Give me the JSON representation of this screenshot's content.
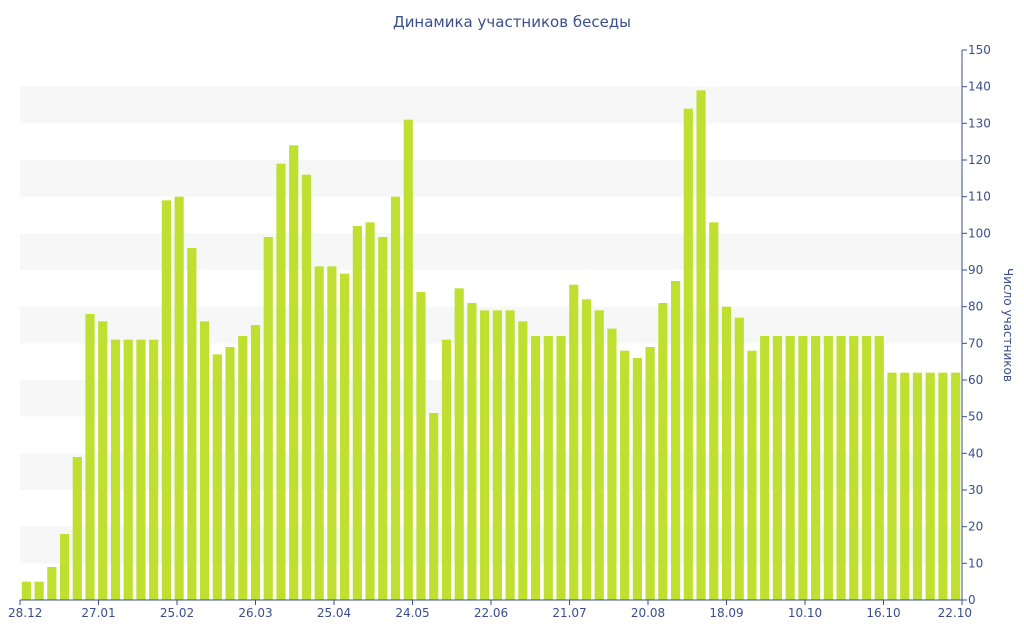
{
  "chart_data": {
    "type": "bar",
    "title": "Динамика участников беседы",
    "xlabel": "",
    "ylabel": "Число участников",
    "ylim": [
      0,
      150
    ],
    "y_ticks": [
      0,
      10,
      20,
      30,
      40,
      50,
      60,
      70,
      80,
      90,
      100,
      110,
      120,
      130,
      140,
      150
    ],
    "y_axis_side": "right",
    "grid": "alternating horizontal bands",
    "x_tick_labels": [
      "28.12",
      "27.01",
      "25.02",
      "26.03",
      "25.04",
      "24.05",
      "22.06",
      "21.07",
      "20.08",
      "18.09",
      "10.10",
      "16.10",
      "22.10"
    ],
    "values": [
      5,
      5,
      9,
      18,
      39,
      78,
      76,
      71,
      71,
      71,
      71,
      109,
      110,
      96,
      76,
      67,
      69,
      72,
      75,
      99,
      119,
      124,
      116,
      91,
      91,
      89,
      102,
      103,
      99,
      110,
      131,
      84,
      51,
      71,
      85,
      81,
      79,
      79,
      79,
      76,
      72,
      72,
      72,
      86,
      82,
      79,
      74,
      68,
      66,
      69,
      81,
      87,
      134,
      139,
      103,
      80,
      77,
      68,
      72,
      72,
      72,
      72,
      72,
      72,
      72,
      72,
      72,
      72,
      62,
      62,
      62,
      62,
      62,
      62
    ],
    "colors": {
      "bar": "#bfe030",
      "axis_text": "#3a4e8c",
      "band": "#f7f7f7"
    }
  }
}
